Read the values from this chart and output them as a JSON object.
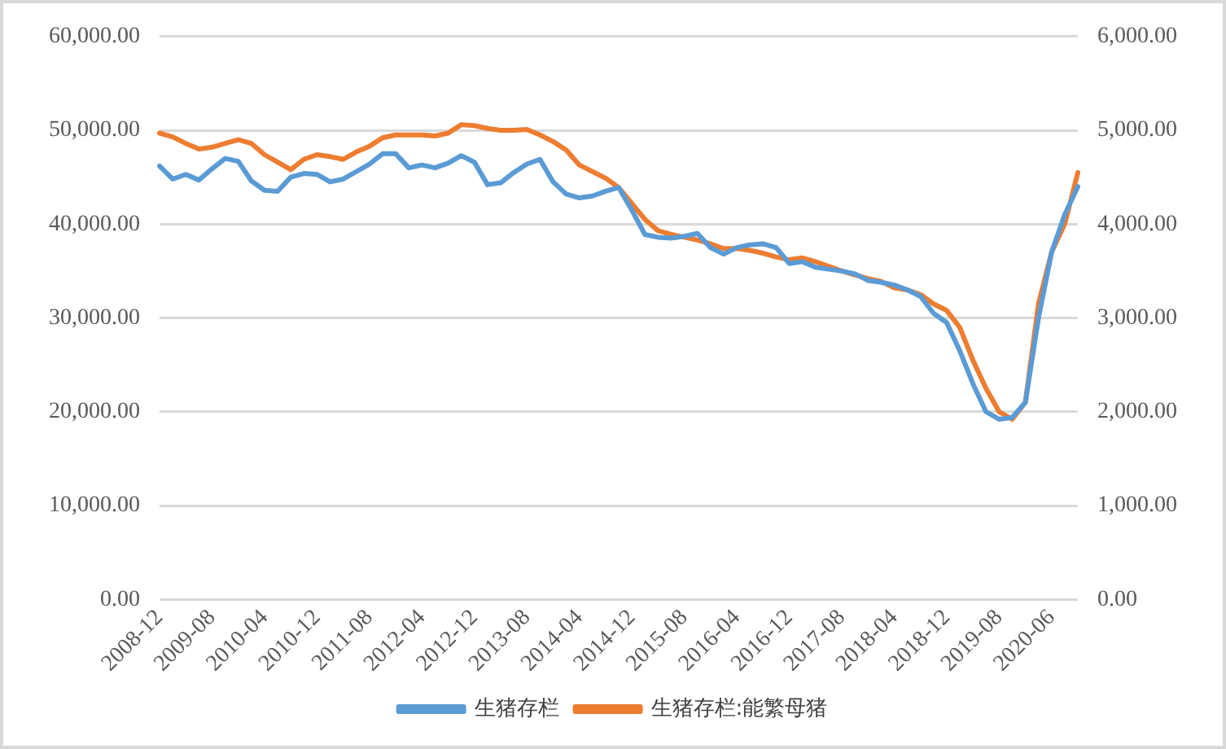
{
  "chart_data": {
    "type": "line",
    "categories": [
      "2008-12",
      null,
      null,
      null,
      "2009-08",
      null,
      null,
      null,
      "2010-04",
      null,
      null,
      null,
      "2010-12",
      null,
      null,
      null,
      "2011-08",
      null,
      null,
      null,
      "2012-04",
      null,
      null,
      null,
      "2012-12",
      null,
      null,
      null,
      "2013-08",
      null,
      null,
      null,
      "2014-04",
      null,
      null,
      null,
      "2014-12",
      null,
      null,
      null,
      "2015-08",
      null,
      null,
      null,
      "2016-04",
      null,
      null,
      null,
      "2016-12",
      null,
      null,
      null,
      "2017-08",
      null,
      null,
      null,
      "2018-04",
      null,
      null,
      null,
      "2018-12",
      null,
      null,
      null,
      "2019-08",
      null,
      null,
      null,
      "2020-06",
      null,
      null
    ],
    "series": [
      {
        "name": "生猪存栏",
        "color": "#5b9bd5",
        "values": [
          46200,
          44800,
          45300,
          44700,
          45900,
          47000,
          46700,
          44600,
          43600,
          43500,
          45000,
          45400,
          45300,
          44500,
          44800,
          45600,
          46400,
          47500,
          47500,
          46000,
          46300,
          46000,
          46500,
          47300,
          46600,
          44200,
          44400,
          45500,
          46400,
          46900,
          44500,
          43200,
          42800,
          43000,
          43500,
          43900,
          41500,
          38900,
          38600,
          38500,
          38700,
          39000,
          37500,
          36800,
          37500,
          37800,
          37900,
          37500,
          35800,
          36000,
          35400,
          35200,
          35000,
          34700,
          34000,
          33800,
          33500,
          33000,
          32300,
          30500,
          29500,
          26500,
          23000,
          20000,
          19200,
          19400,
          21000,
          30000,
          37000,
          41000,
          44000
        ]
      },
      {
        "name": "生猪存栏:能繁母猪",
        "color": "#ed7d31",
        "axis": "y2",
        "values": [
          4970,
          4930,
          4860,
          4800,
          4820,
          4860,
          4900,
          4860,
          4740,
          4660,
          4580,
          4690,
          4740,
          4720,
          4690,
          4770,
          4830,
          4920,
          4950,
          4950,
          4950,
          4940,
          4970,
          5060,
          5050,
          5020,
          5000,
          5000,
          5010,
          4950,
          4880,
          4790,
          4630,
          4560,
          4490,
          4390,
          4220,
          4050,
          3930,
          3890,
          3860,
          3830,
          3790,
          3740,
          3740,
          3720,
          3690,
          3650,
          3620,
          3640,
          3600,
          3550,
          3500,
          3460,
          3420,
          3390,
          3320,
          3300,
          3250,
          3150,
          3080,
          2900,
          2550,
          2250,
          2000,
          1920,
          2100,
          3150,
          3700,
          4000,
          4550
        ]
      }
    ],
    "ylim": [
      0,
      60000
    ],
    "yticks": [
      {
        "value": 0,
        "label": "0.00"
      },
      {
        "value": 10000,
        "label": "10,000.00"
      },
      {
        "value": 20000,
        "label": "20,000.00"
      },
      {
        "value": 30000,
        "label": "30,000.00"
      },
      {
        "value": 40000,
        "label": "40,000.00"
      },
      {
        "value": 50000,
        "label": "50,000.00"
      },
      {
        "value": 60000,
        "label": "60,000.00"
      }
    ],
    "y2lim": [
      0,
      6000
    ],
    "y2ticks": [
      {
        "value": 0,
        "label": "0.00"
      },
      {
        "value": 1000,
        "label": "1,000.00"
      },
      {
        "value": 2000,
        "label": "2,000.00"
      },
      {
        "value": 3000,
        "label": "3,000.00"
      },
      {
        "value": 4000,
        "label": "4,000.00"
      },
      {
        "value": 5000,
        "label": "5,000.00"
      },
      {
        "value": 6000,
        "label": "6,000.00"
      }
    ],
    "grid": "y",
    "legend": "bottom",
    "marker": "none",
    "line_style": "solid"
  }
}
